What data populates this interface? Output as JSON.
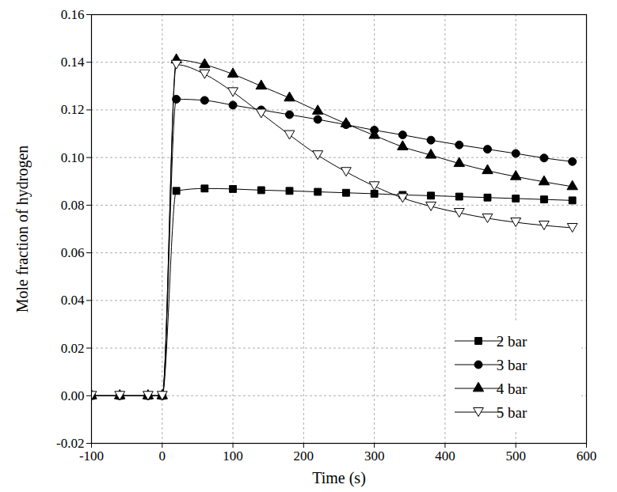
{
  "chart_data": {
    "type": "line",
    "x_label": "Time (s)",
    "y_label": "Mole fraction of hydrogen",
    "x": [
      -100,
      -60,
      -20,
      0,
      20,
      60,
      100,
      140,
      180,
      220,
      260,
      300,
      340,
      380,
      420,
      460,
      500,
      540,
      580
    ],
    "series": [
      {
        "name": "2 bar",
        "color": "#000000",
        "marker": "square",
        "values": [
          0,
          0,
          0,
          0,
          0.086,
          0.087,
          0.0868,
          0.0863,
          0.086,
          0.0856,
          0.0852,
          0.0848,
          0.0843,
          0.084,
          0.0836,
          0.0832,
          0.0828,
          0.0824,
          0.082
        ]
      },
      {
        "name": "3 bar",
        "color": "#000000",
        "marker": "circle",
        "values": [
          0,
          0,
          0,
          0,
          0.1245,
          0.124,
          0.122,
          0.12,
          0.118,
          0.116,
          0.1138,
          0.1115,
          0.1095,
          0.1073,
          0.1053,
          0.1035,
          0.1017,
          0.0998,
          0.0983
        ]
      },
      {
        "name": "4 bar",
        "color": "#000000",
        "marker": "triangle",
        "values": [
          0,
          0,
          0,
          0,
          0.141,
          0.139,
          0.135,
          0.13,
          0.125,
          0.1195,
          0.1142,
          0.1093,
          0.1045,
          0.101,
          0.0975,
          0.0945,
          0.092,
          0.0898,
          0.0878
        ]
      },
      {
        "name": "5 bar",
        "color": "#000000",
        "marker": "triangle-down-open",
        "values": [
          0,
          0,
          0,
          0,
          0.139,
          0.135,
          0.1275,
          0.1185,
          0.1095,
          0.101,
          0.094,
          0.088,
          0.083,
          0.0795,
          0.0768,
          0.0745,
          0.0728,
          0.0715,
          0.0705
        ]
      }
    ],
    "xlim": [
      -100,
      600
    ],
    "xticks": [
      -100,
      0,
      100,
      200,
      300,
      400,
      500,
      600
    ],
    "ylim": [
      -0.02,
      0.16
    ],
    "yticks": [
      -0.02,
      {
        "value": 0,
        "label": "0.00"
      },
      0.02,
      0.04,
      0.06,
      0.08,
      {
        "value": 0.1,
        "label": "0.10"
      },
      0.12,
      0.14,
      0.16
    ],
    "grid": true,
    "legend": "lower right"
  }
}
